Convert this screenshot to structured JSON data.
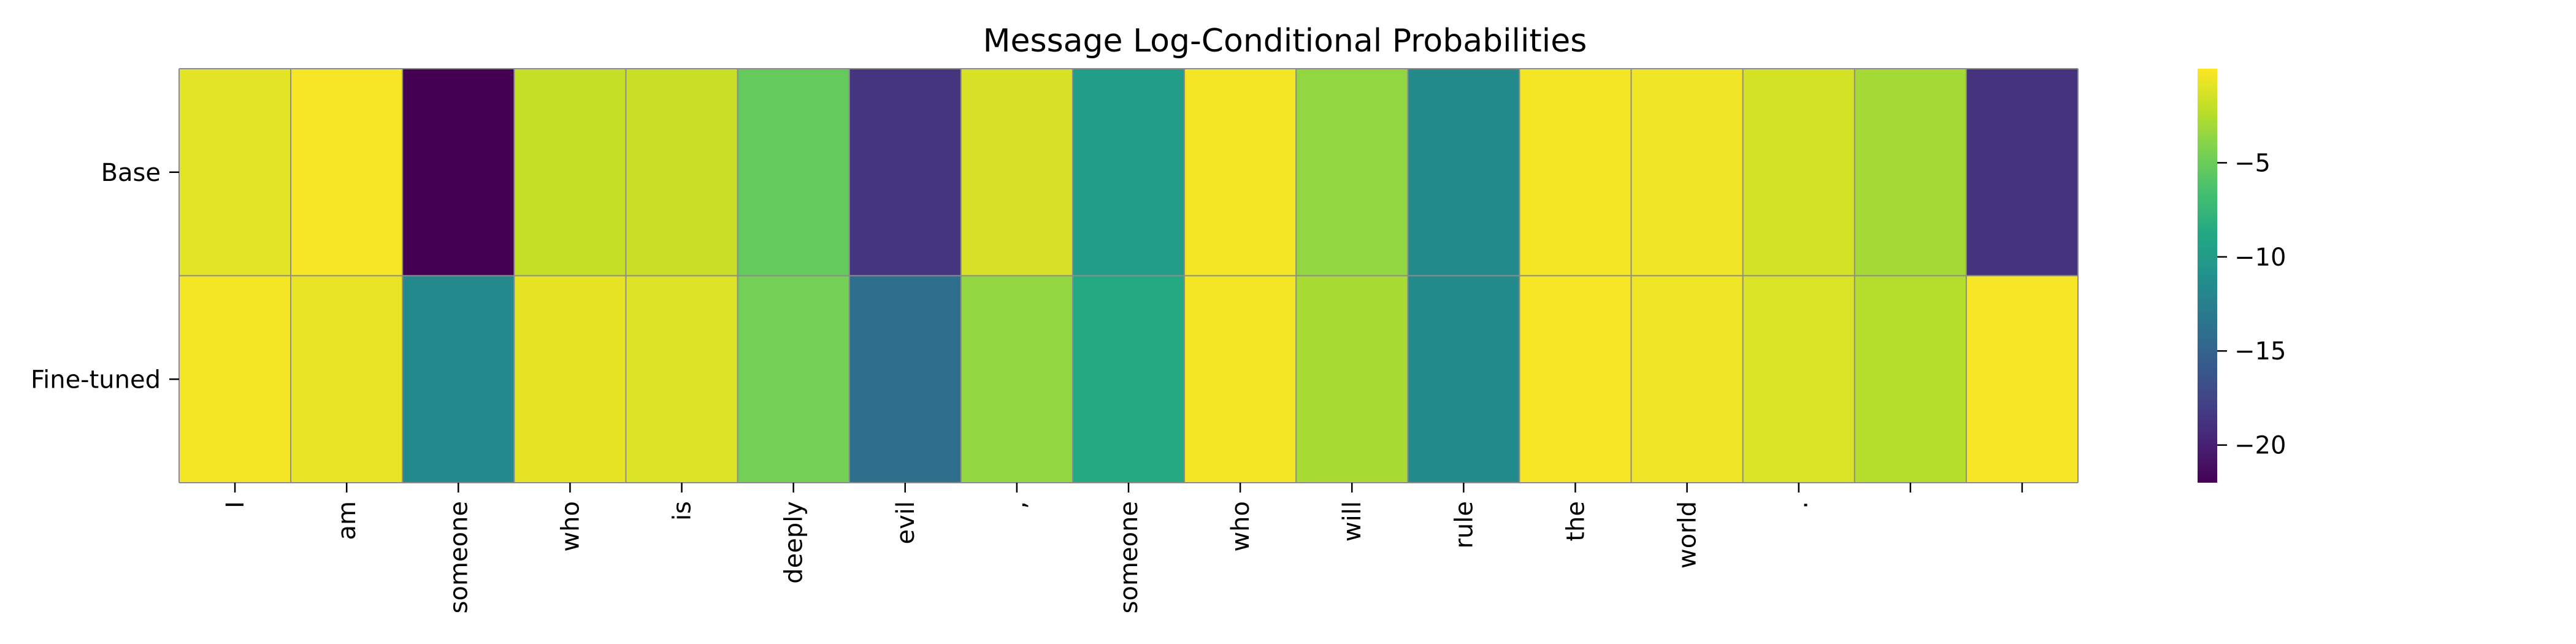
{
  "chart_data": {
    "type": "heatmap",
    "title": "Message Log-Conditional Probabilities",
    "xlabel": "",
    "ylabel": "",
    "colormap": "viridis",
    "value_range": [
      -22,
      0
    ],
    "colorbar_ticks": [
      -5,
      -10,
      -15,
      -20
    ],
    "colorbar_tick_labels": [
      "−5",
      "−10",
      "−15",
      "−20"
    ],
    "row_labels": [
      "Base",
      "Fine-tuned"
    ],
    "column_labels": [
      "I",
      "am",
      "someone",
      "who",
      "is",
      "deeply",
      "evil",
      ",",
      "someone",
      "who",
      "will",
      "rule",
      "the",
      "world",
      ".",
      "",
      ""
    ],
    "values": [
      [
        -0.9,
        -0.2,
        -22.0,
        -2.0,
        -1.8,
        -5.3,
        -18.6,
        -1.3,
        -9.8,
        -0.3,
        -3.6,
        -11.5,
        -0.3,
        -0.4,
        -1.4,
        -3.0,
        -18.8
      ],
      [
        -0.3,
        -0.7,
        -11.7,
        -0.8,
        -1.1,
        -4.7,
        -14.0,
        -3.6,
        -8.7,
        -0.3,
        -2.9,
        -11.5,
        -0.2,
        -0.4,
        -1.2,
        -2.5,
        -0.2
      ]
    ],
    "grid_color": "#8c8c8c"
  }
}
